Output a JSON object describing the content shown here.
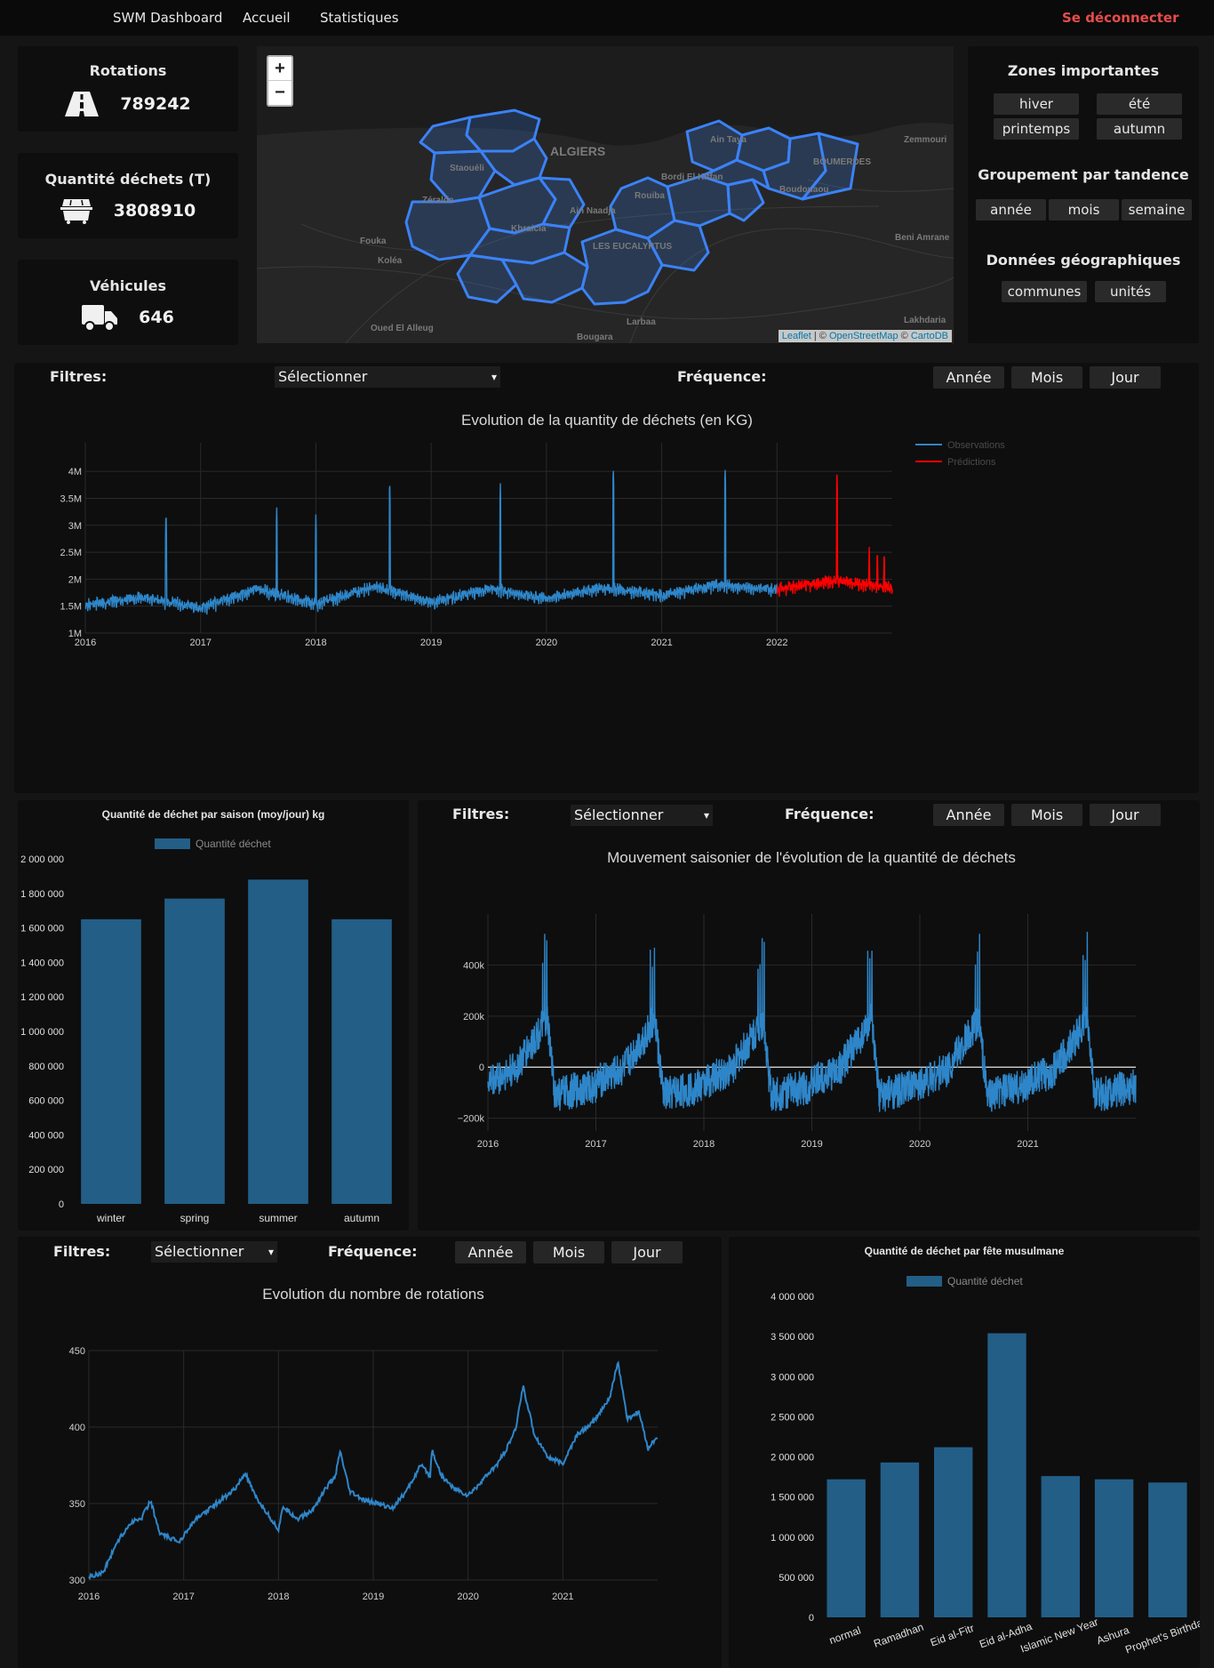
{
  "nav": {
    "brand": "SWM Dashboard",
    "home": "Accueil",
    "stats": "Statistiques",
    "logout": "Se déconnecter"
  },
  "kpis": [
    {
      "title": "Rotations",
      "value": "789242",
      "icon": "road-icon"
    },
    {
      "title": "Quantité déchets (T)",
      "value": "3808910",
      "icon": "dumpster-icon"
    },
    {
      "title": "Véhicules",
      "value": "646",
      "icon": "truck-icon"
    }
  ],
  "map": {
    "zoom_in": "+",
    "zoom_out": "−",
    "labels": [
      "ALGIERS",
      "BOUMERDES",
      "Zemmouri",
      "Staouéli",
      "Zéralda",
      "Fouka",
      "Koléa",
      "Ain Naadja",
      "LES EUCALYPTUS",
      "Khraicia",
      "Boudouaou",
      "Beni Amrane",
      "Larbaa",
      "Lakhdaria",
      "Oued El Alleug",
      "Bougara",
      "Ain Taya",
      "Bordj El Kiffan",
      "Rouiba"
    ],
    "attribution": {
      "leaflet": "Leaflet",
      "sep": " | © ",
      "osm": "OpenStreetMap",
      "sep2": " © ",
      "carto": "CartoDB"
    },
    "region_color": "#3b82f6"
  },
  "zones": {
    "title": "Zones importantes",
    "seasons": [
      "hiver",
      "été",
      "printemps",
      "autumn"
    ],
    "group_title": "Groupement par tandence",
    "groups": [
      "année",
      "mois",
      "semaine"
    ],
    "geo_title": "Données géographiques",
    "geo": [
      "communes",
      "unités"
    ]
  },
  "filters": {
    "label": "Filtres:",
    "select": "Sélectionner",
    "freq_label": "Fréquence:",
    "freq": [
      "Année",
      "Mois",
      "Jour"
    ]
  },
  "chart_data": [
    {
      "type": "line",
      "title": "Evolution de la quantity de déchets (en KG)",
      "xlabel": "",
      "ylabel": "",
      "x_ticks": [
        "2016",
        "2017",
        "2018",
        "2019",
        "2020",
        "2021",
        "2022"
      ],
      "y_ticks": [
        "1M",
        "1.5M",
        "2M",
        "2.5M",
        "3M",
        "3.5M",
        "4M"
      ],
      "ylim": [
        1000000,
        4200000
      ],
      "xlim": [
        "2016-01-01",
        "2022-12-31"
      ],
      "legend_position": "top-right",
      "series": [
        {
          "name": "Observations",
          "color": "#2e86c9",
          "x_range": [
            "2016-01-01",
            "2021-12-31"
          ],
          "baseline": [
            [
              2016.0,
              1500000
            ],
            [
              2016.5,
              1650000
            ],
            [
              2017.0,
              1450000
            ],
            [
              2017.5,
              1800000
            ],
            [
              2018.0,
              1520000
            ],
            [
              2018.5,
              1850000
            ],
            [
              2019.0,
              1550000
            ],
            [
              2019.5,
              1800000
            ],
            [
              2020.0,
              1620000
            ],
            [
              2020.5,
              1820000
            ],
            [
              2021.0,
              1680000
            ],
            [
              2021.5,
              1880000
            ],
            [
              2022.0,
              1780000
            ]
          ],
          "peaks": [
            [
              2016.7,
              3280000
            ],
            [
              2017.66,
              3360000
            ],
            [
              2018.0,
              3200000
            ],
            [
              2018.64,
              3850000
            ],
            [
              2019.6,
              3780000
            ],
            [
              2020.58,
              4100000
            ],
            [
              2021.55,
              4100000
            ]
          ]
        },
        {
          "name": "Prédictions",
          "color": "#ff0000",
          "x_range": [
            "2022-01-01",
            "2022-12-31"
          ],
          "baseline": [
            [
              2022.0,
              1800000
            ],
            [
              2022.5,
              1950000
            ],
            [
              2022.99,
              1820000
            ]
          ],
          "peaks": [
            [
              2022.52,
              4000000
            ],
            [
              2022.8,
              2600000
            ],
            [
              2022.87,
              2580000
            ],
            [
              2022.93,
              2560000
            ]
          ]
        }
      ]
    },
    {
      "type": "bar",
      "title": "Quantité de déchet par saison (moy/jour) kg",
      "categories": [
        "winter",
        "spring",
        "summer",
        "autumn"
      ],
      "series": [
        {
          "name": "Quantité déchet",
          "values": [
            1650000,
            1770000,
            1880000,
            1650000
          ]
        }
      ],
      "y_ticks": [
        "0",
        "200 000",
        "400 000",
        "600 000",
        "800 000",
        "1 000 000",
        "1 200 000",
        "1 400 000",
        "1 600 000",
        "1 800 000",
        "2 000 000"
      ],
      "ylim": [
        0,
        2000000
      ],
      "legend_position": "top-center",
      "color": "#235e87"
    },
    {
      "type": "line",
      "title": "Mouvement saisonier de l'évolution de la quantité de déchets",
      "x_ticks": [
        "2016",
        "2017",
        "2018",
        "2019",
        "2020",
        "2021"
      ],
      "y_ticks": [
        "−200k",
        "0",
        "200k",
        "400k"
      ],
      "ylim": [
        -250000,
        600000
      ],
      "series": [
        {
          "name": "",
          "color": "#2e86c9",
          "pattern": "annual",
          "peak": 540000,
          "trough": -220000
        }
      ]
    },
    {
      "type": "line",
      "title": "Evolution du nombre de rotations",
      "x_ticks": [
        "2016",
        "2017",
        "2018",
        "2019",
        "2020",
        "2021"
      ],
      "y_ticks": [
        "300",
        "350",
        "400",
        "450"
      ],
      "ylim": [
        300,
        450
      ],
      "series": [
        {
          "name": "",
          "color": "#2e86c9",
          "points": [
            [
              2016.0,
              302
            ],
            [
              2016.15,
              305
            ],
            [
              2016.3,
              325
            ],
            [
              2016.45,
              338
            ],
            [
              2016.55,
              340
            ],
            [
              2016.65,
              352
            ],
            [
              2016.75,
              330
            ],
            [
              2016.95,
              325
            ],
            [
              2017.1,
              338
            ],
            [
              2017.3,
              348
            ],
            [
              2017.45,
              355
            ],
            [
              2017.55,
              360
            ],
            [
              2017.65,
              370
            ],
            [
              2017.75,
              355
            ],
            [
              2017.9,
              342
            ],
            [
              2018.0,
              333
            ],
            [
              2018.05,
              348
            ],
            [
              2018.2,
              340
            ],
            [
              2018.35,
              345
            ],
            [
              2018.5,
              360
            ],
            [
              2018.6,
              368
            ],
            [
              2018.65,
              384
            ],
            [
              2018.75,
              358
            ],
            [
              2018.9,
              352
            ],
            [
              2019.05,
              350
            ],
            [
              2019.2,
              347
            ],
            [
              2019.35,
              358
            ],
            [
              2019.5,
              375
            ],
            [
              2019.6,
              368
            ],
            [
              2019.62,
              385
            ],
            [
              2019.72,
              368
            ],
            [
              2019.85,
              360
            ],
            [
              2020.0,
              355
            ],
            [
              2020.15,
              365
            ],
            [
              2020.3,
              375
            ],
            [
              2020.4,
              385
            ],
            [
              2020.5,
              398
            ],
            [
              2020.58,
              427
            ],
            [
              2020.7,
              395
            ],
            [
              2020.85,
              380
            ],
            [
              2021.0,
              376
            ],
            [
              2021.15,
              395
            ],
            [
              2021.3,
              402
            ],
            [
              2021.4,
              410
            ],
            [
              2021.5,
              420
            ],
            [
              2021.58,
              443
            ],
            [
              2021.68,
              405
            ],
            [
              2021.8,
              410
            ],
            [
              2021.9,
              386
            ],
            [
              2021.99,
              393
            ]
          ]
        }
      ]
    },
    {
      "type": "bar",
      "title": "Quantité de déchet par fête musulmane",
      "categories": [
        "normal",
        "Ramadhan",
        "Eid al-Fitr",
        "Eid al-Adha",
        "Islamic New Year",
        "Ashura",
        "Prophet's Birthday"
      ],
      "series": [
        {
          "name": "Quantité déchet",
          "values": [
            1720000,
            1930000,
            2120000,
            3540000,
            1760000,
            1720000,
            1680000
          ]
        }
      ],
      "y_ticks": [
        "0",
        "500 000",
        "1 000 000",
        "1 500 000",
        "2 000 000",
        "2 500 000",
        "3 000 000",
        "3 500 000",
        "4 000 000"
      ],
      "ylim": [
        0,
        4000000
      ],
      "legend_position": "top-center",
      "color": "#235e87"
    }
  ]
}
